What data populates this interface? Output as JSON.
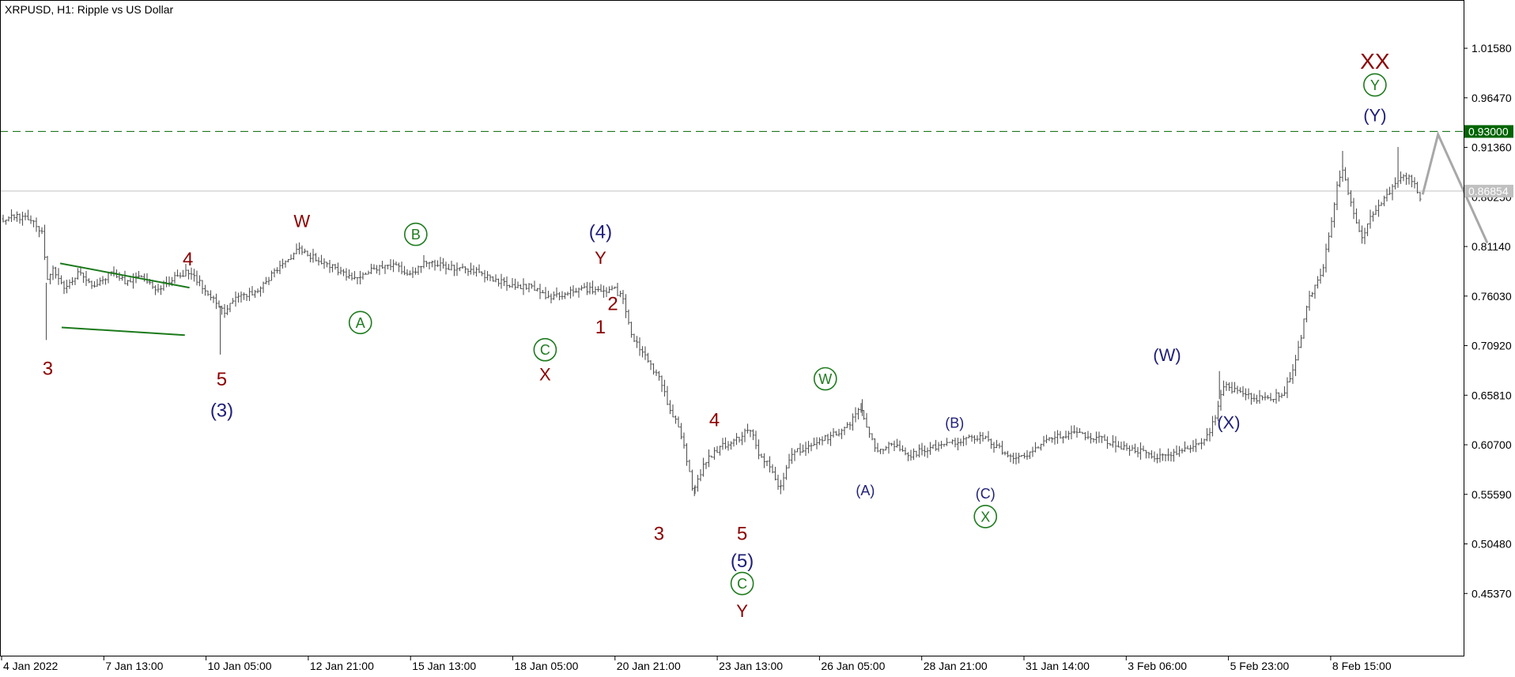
{
  "chart_data": {
    "type": "candlestick",
    "symbol": "XRPUSD",
    "timeframe": "H1",
    "description": "Ripple vs US Dollar",
    "title": "XRPUSD, H1:  Ripple vs US Dollar",
    "y_ticks": [
      "1.01580",
      "0.96470",
      "0.91360",
      "0.86250",
      "0.81140",
      "0.76030",
      "0.70920",
      "0.65810",
      "0.60700",
      "0.55590",
      "0.50480",
      "0.45370"
    ],
    "x_ticks": [
      "4 Jan 2022",
      "7 Jan 13:00",
      "10 Jan 05:00",
      "12 Jan 21:00",
      "15 Jan 13:00",
      "18 Jan 05:00",
      "20 Jan 21:00",
      "23 Jan 13:00",
      "26 Jan 05:00",
      "28 Jan 21:00",
      "31 Jan 14:00",
      "3 Feb 06:00",
      "5 Feb 23:00",
      "8 Feb 15:00"
    ],
    "ylim": [
      0.414,
      1.046
    ],
    "grid": false,
    "price_path": [
      [
        0.0,
        0.84
      ],
      [
        0.5,
        0.842
      ],
      [
        1.0,
        0.838
      ],
      [
        1.3,
        0.822
      ],
      [
        1.4,
        0.774
      ],
      [
        1.6,
        0.79
      ],
      [
        2.0,
        0.768
      ],
      [
        2.5,
        0.785
      ],
      [
        3.0,
        0.77
      ],
      [
        3.5,
        0.785
      ],
      [
        4.0,
        0.775
      ],
      [
        4.5,
        0.78
      ],
      [
        5.0,
        0.768
      ],
      [
        5.5,
        0.778
      ],
      [
        6.0,
        0.785
      ],
      [
        6.5,
        0.77
      ],
      [
        7.2,
        0.745
      ],
      [
        7.6,
        0.758
      ],
      [
        8.2,
        0.765
      ],
      [
        8.6,
        0.778
      ],
      [
        9.2,
        0.798
      ],
      [
        9.6,
        0.808
      ],
      [
        10.3,
        0.796
      ],
      [
        10.8,
        0.789
      ],
      [
        11.3,
        0.778
      ],
      [
        12.0,
        0.788
      ],
      [
        12.5,
        0.794
      ],
      [
        13.2,
        0.783
      ],
      [
        13.7,
        0.795
      ],
      [
        14.5,
        0.79
      ],
      [
        15.2,
        0.788
      ],
      [
        15.8,
        0.78
      ],
      [
        16.5,
        0.77
      ],
      [
        17.2,
        0.77
      ],
      [
        17.8,
        0.758
      ],
      [
        18.3,
        0.764
      ],
      [
        18.8,
        0.768
      ],
      [
        19.5,
        0.765
      ],
      [
        19.8,
        0.768
      ],
      [
        20.1,
        0.76
      ],
      [
        20.4,
        0.72
      ],
      [
        20.8,
        0.7
      ],
      [
        21.3,
        0.675
      ],
      [
        21.7,
        0.64
      ],
      [
        22.0,
        0.62
      ],
      [
        22.4,
        0.56
      ],
      [
        22.8,
        0.59
      ],
      [
        23.3,
        0.605
      ],
      [
        23.8,
        0.612
      ],
      [
        24.3,
        0.625
      ],
      [
        24.5,
        0.598
      ],
      [
        24.9,
        0.585
      ],
      [
        25.2,
        0.56
      ],
      [
        25.6,
        0.598
      ],
      [
        26.2,
        0.605
      ],
      [
        26.8,
        0.615
      ],
      [
        27.4,
        0.625
      ],
      [
        27.8,
        0.645
      ],
      [
        28.0,
        0.628
      ],
      [
        28.4,
        0.6
      ],
      [
        28.9,
        0.608
      ],
      [
        29.4,
        0.596
      ],
      [
        30.0,
        0.603
      ],
      [
        30.6,
        0.608
      ],
      [
        31.2,
        0.612
      ],
      [
        31.8,
        0.615
      ],
      [
        32.4,
        0.602
      ],
      [
        32.8,
        0.59
      ],
      [
        33.4,
        0.6
      ],
      [
        33.9,
        0.612
      ],
      [
        34.5,
        0.618
      ],
      [
        35.0,
        0.618
      ],
      [
        35.7,
        0.613
      ],
      [
        36.3,
        0.605
      ],
      [
        36.9,
        0.6
      ],
      [
        37.4,
        0.595
      ],
      [
        38.0,
        0.598
      ],
      [
        38.6,
        0.605
      ],
      [
        39.1,
        0.615
      ],
      [
        39.4,
        0.64
      ],
      [
        39.6,
        0.668
      ],
      [
        40.2,
        0.66
      ],
      [
        40.7,
        0.655
      ],
      [
        41.2,
        0.655
      ],
      [
        41.6,
        0.662
      ],
      [
        42.0,
        0.695
      ],
      [
        42.4,
        0.76
      ],
      [
        42.8,
        0.78
      ],
      [
        43.1,
        0.83
      ],
      [
        43.3,
        0.87
      ],
      [
        43.5,
        0.893
      ],
      [
        43.8,
        0.85
      ],
      [
        44.1,
        0.82
      ],
      [
        44.4,
        0.84
      ],
      [
        44.8,
        0.86
      ],
      [
        45.1,
        0.87
      ],
      [
        45.4,
        0.885
      ],
      [
        45.8,
        0.88
      ],
      [
        46.1,
        0.855
      ]
    ],
    "levels": [
      {
        "name": "target",
        "value": 0.93,
        "label": "0.93000",
        "color": "#006400",
        "style": "dashed"
      },
      {
        "name": "current",
        "value": 0.86854,
        "label": "0.86854",
        "color": "#c0c0c0",
        "style": "solid"
      }
    ],
    "projection": [
      [
        46.1,
        0.865
      ],
      [
        46.6,
        0.927
      ],
      [
        48.2,
        0.815
      ]
    ],
    "triangle_lines": [
      [
        [
          1.85,
          0.794
        ],
        [
          6.05,
          0.769
        ]
      ],
      [
        [
          1.9,
          0.728
        ],
        [
          5.9,
          0.72
        ]
      ]
    ],
    "annotations": [
      {
        "text": "3",
        "color": "#8b0000",
        "x": 1.45,
        "y": 0.686,
        "size": 24
      },
      {
        "text": "4",
        "color": "#8b0000",
        "x": 6.0,
        "y": 0.799,
        "size": 24
      },
      {
        "text": "5",
        "color": "#8b0000",
        "x": 7.1,
        "y": 0.675,
        "size": 24
      },
      {
        "text": "(3)",
        "color": "#1f1f7a",
        "x": 7.1,
        "y": 0.643,
        "size": 24
      },
      {
        "text": "W",
        "color": "#8b0000",
        "x": 9.7,
        "y": 0.838,
        "size": 22
      },
      {
        "text": "B",
        "color": "#1e7b1e",
        "circled": true,
        "x": 13.4,
        "y": 0.824,
        "size": 18
      },
      {
        "text": "A",
        "color": "#1e7b1e",
        "circled": true,
        "x": 11.6,
        "y": 0.733,
        "size": 18
      },
      {
        "text": "C",
        "color": "#1e7b1e",
        "circled": true,
        "x": 17.6,
        "y": 0.705,
        "size": 18
      },
      {
        "text": "X",
        "color": "#8b0000",
        "x": 17.6,
        "y": 0.68,
        "size": 22
      },
      {
        "text": "(4)",
        "color": "#1f1f7a",
        "x": 19.4,
        "y": 0.827,
        "size": 24
      },
      {
        "text": "Y",
        "color": "#8b0000",
        "x": 19.4,
        "y": 0.8,
        "size": 22
      },
      {
        "text": "2",
        "color": "#8b0000",
        "x": 19.8,
        "y": 0.753,
        "size": 24
      },
      {
        "text": "1",
        "color": "#8b0000",
        "x": 19.4,
        "y": 0.729,
        "size": 24
      },
      {
        "text": "4",
        "color": "#8b0000",
        "x": 23.1,
        "y": 0.633,
        "size": 24
      },
      {
        "text": "W",
        "color": "#1e7b1e",
        "circled": true,
        "x": 26.7,
        "y": 0.675,
        "size": 18
      },
      {
        "text": "3",
        "color": "#8b0000",
        "x": 21.3,
        "y": 0.516,
        "size": 24
      },
      {
        "text": "5",
        "color": "#8b0000",
        "x": 24.0,
        "y": 0.516,
        "size": 24
      },
      {
        "text": "(5)",
        "color": "#1f1f7a",
        "x": 24.0,
        "y": 0.488,
        "size": 24
      },
      {
        "text": "C",
        "color": "#1e7b1e",
        "circled": true,
        "x": 24.0,
        "y": 0.464,
        "size": 18
      },
      {
        "text": "Y",
        "color": "#8b0000",
        "x": 24.0,
        "y": 0.436,
        "size": 22
      },
      {
        "text": "(A)",
        "color": "#1f1f7a",
        "x": 28.0,
        "y": 0.56,
        "size": 18
      },
      {
        "text": "(B)",
        "color": "#1f1f7a",
        "x": 30.9,
        "y": 0.63,
        "size": 18
      },
      {
        "text": "(C)",
        "color": "#1f1f7a",
        "x": 31.9,
        "y": 0.557,
        "size": 18
      },
      {
        "text": "X",
        "color": "#1e7b1e",
        "circled": true,
        "x": 31.9,
        "y": 0.533,
        "size": 18
      },
      {
        "text": "(W)",
        "color": "#1f1f7a",
        "x": 37.8,
        "y": 0.7,
        "size": 22
      },
      {
        "text": "(X)",
        "color": "#1f1f7a",
        "x": 39.8,
        "y": 0.63,
        "size": 22
      },
      {
        "text": "XX",
        "color": "#8b0000",
        "x": 44.55,
        "y": 1.003,
        "size": 28
      },
      {
        "text": "Y",
        "color": "#1e7b1e",
        "circled": true,
        "x": 44.55,
        "y": 0.978,
        "size": 18
      },
      {
        "text": "(Y)",
        "color": "#1f1f7a",
        "x": 44.55,
        "y": 0.947,
        "size": 22
      }
    ]
  }
}
